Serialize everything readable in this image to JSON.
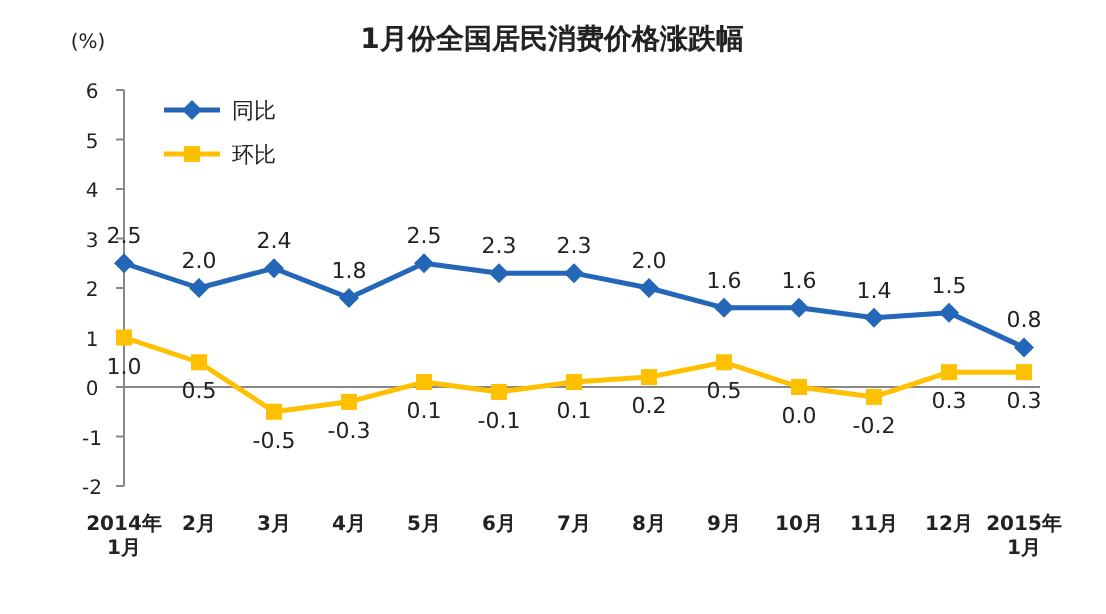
{
  "chart_data": {
    "type": "line",
    "title": "1月份全国居民消费价格涨跌幅",
    "ylabel": "(%)",
    "categories": [
      "2014年1月",
      "2月",
      "3月",
      "4月",
      "5月",
      "6月",
      "7月",
      "8月",
      "9月",
      "10月",
      "11月",
      "12月",
      "2015年1月"
    ],
    "series": [
      {
        "name": "同比",
        "color": "#2466b8",
        "marker": "diamond",
        "values": [
          2.5,
          2.0,
          2.4,
          1.8,
          2.5,
          2.3,
          2.3,
          2.0,
          1.6,
          1.6,
          1.4,
          1.5,
          0.8
        ],
        "value_labels": [
          "2.5",
          "2.0",
          "2.4",
          "1.8",
          "2.5",
          "2.3",
          "2.3",
          "2.0",
          "1.6",
          "1.6",
          "1.4",
          "1.5",
          "0.8"
        ]
      },
      {
        "name": "环比",
        "color": "#ffc000",
        "marker": "square",
        "values": [
          1.0,
          0.5,
          -0.5,
          -0.3,
          0.1,
          -0.1,
          0.1,
          0.2,
          0.5,
          0.0,
          -0.2,
          0.3,
          0.3
        ],
        "value_labels": [
          "1.0",
          "0.5",
          "-0.5",
          "-0.3",
          "0.1",
          "-0.1",
          "0.1",
          "0.2",
          "0.5",
          "0.0",
          "-0.2",
          "0.3",
          "0.3"
        ]
      }
    ],
    "ylim": [
      -2,
      6
    ],
    "yticks": [
      -2,
      -1,
      0,
      1,
      2,
      3,
      4,
      5,
      6
    ],
    "legend": "top left",
    "line_style": "solid"
  }
}
